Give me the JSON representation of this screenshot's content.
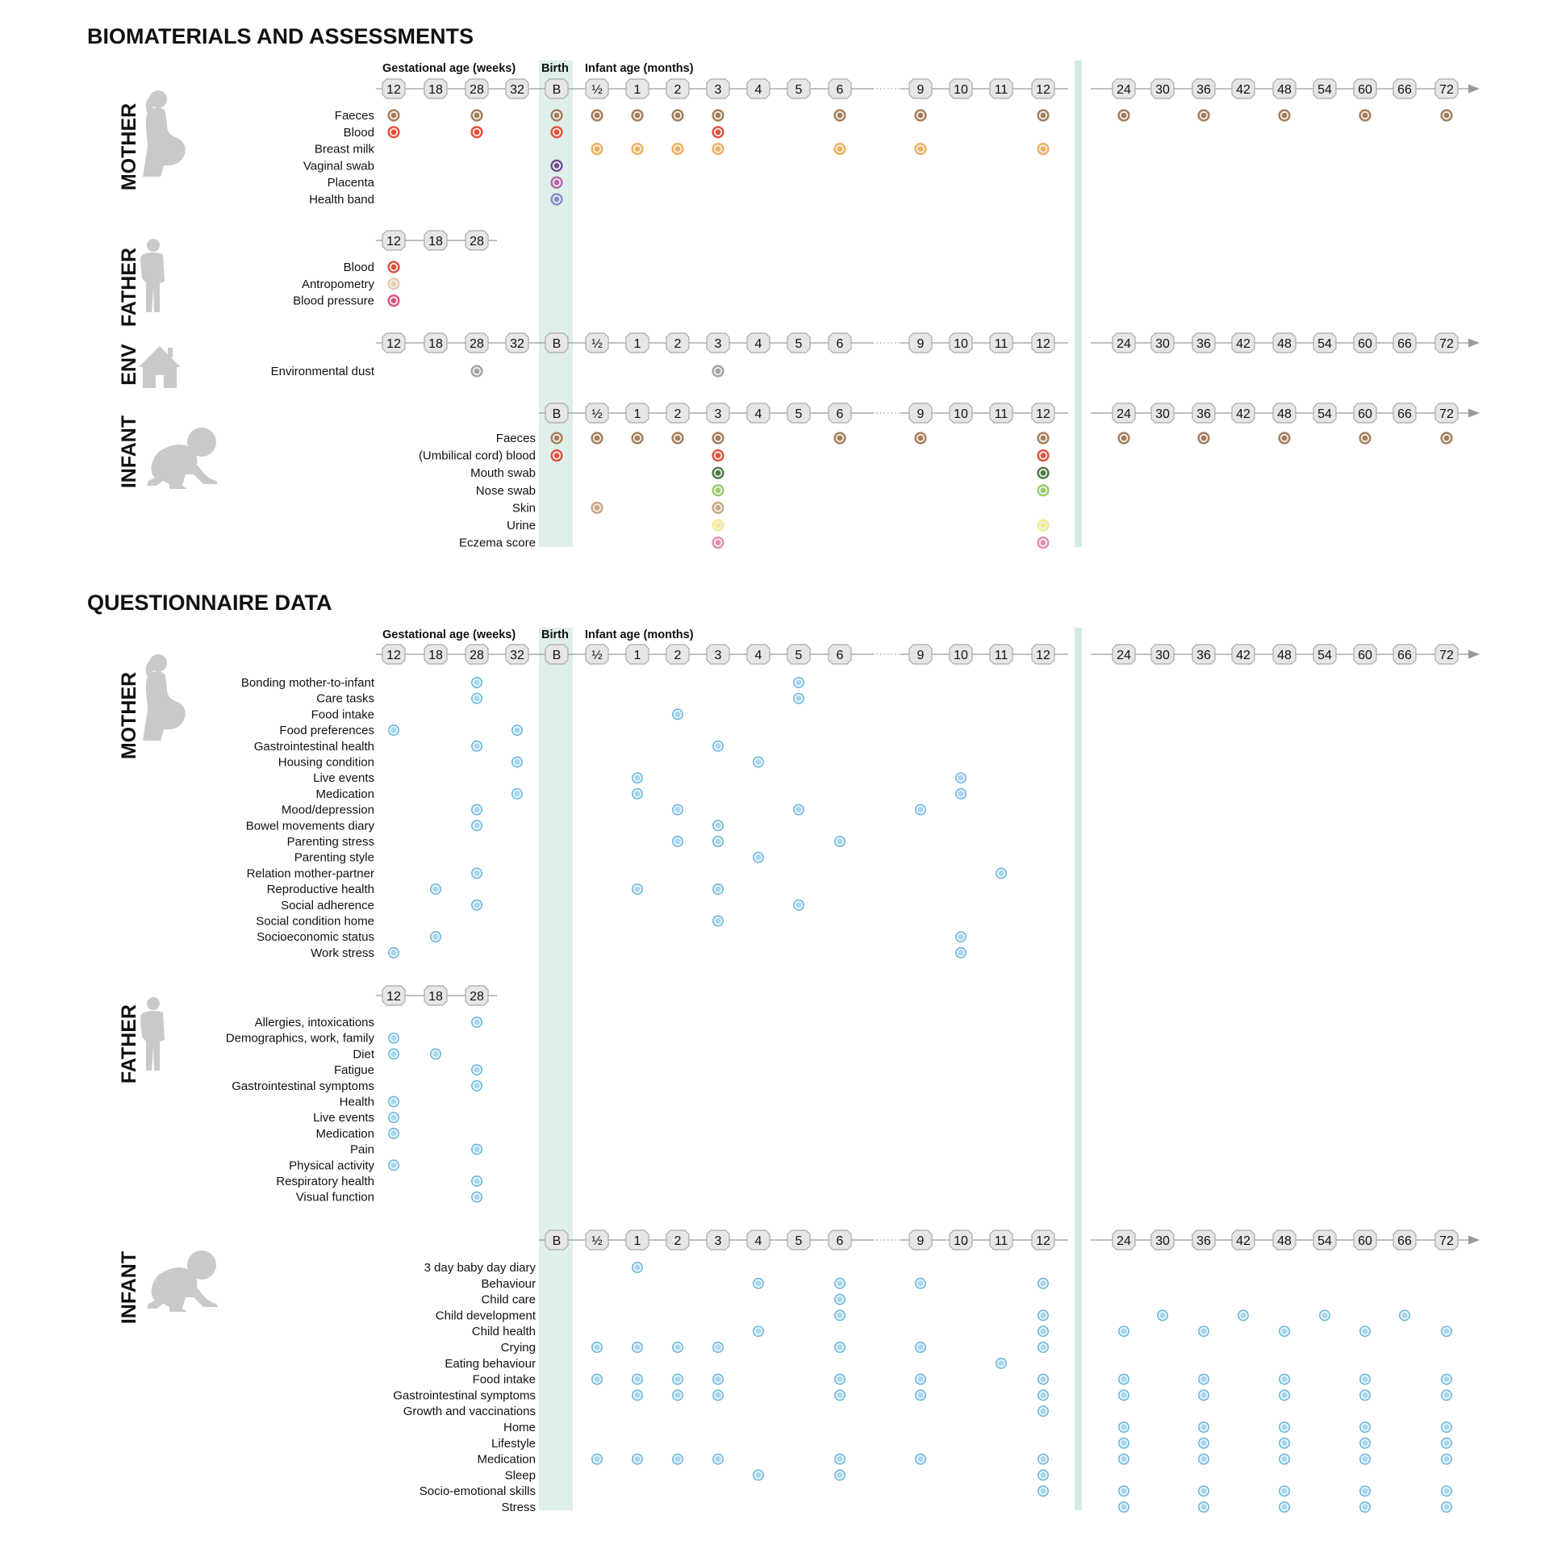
{
  "colors": {
    "birth_band": "#dfefe9",
    "separator": "#d3ebe3",
    "silhouette": "#c9c9c9",
    "tick_fill": "#e6e6e6",
    "tick_stroke": "#a9a9a9",
    "axis_line": "#9a9a9a",
    "questionnaire_dot": "#a9d7ee",
    "questionnaire_dot_stroke": "#6fb6da",
    "sample": {
      "faeces": "#a57e5a",
      "blood": "#e2513d",
      "breast_milk": "#efb15e",
      "vaginal_swab": "#6e4f97",
      "placenta": "#b46aa6",
      "health_band": "#7d8ec7",
      "antropometry": "#e1cdb2",
      "blood_pressure": "#d9577f",
      "environmental_dust": "#a3a3a3",
      "mouth_swab": "#4f7a45",
      "nose_swab": "#9ccc66",
      "skin": "#caa584",
      "urine": "#f4ec8d",
      "eczema_score": "#e58fb4"
    }
  },
  "axis": {
    "gestational_label": "Gestational age (weeks)",
    "birth_label": "Birth",
    "infant_label": "Infant age (months)",
    "gest_ticks": [
      "12",
      "18",
      "28",
      "32"
    ],
    "birth_tick": "B",
    "infant_ticks": [
      "½",
      "1",
      "2",
      "3",
      "4",
      "5",
      "6",
      "9",
      "10",
      "11",
      "12"
    ],
    "later_ticks": [
      "24",
      "30",
      "36",
      "42",
      "48",
      "54",
      "60",
      "66",
      "72"
    ]
  },
  "sections": [
    {
      "title": "BIOMATERIALS AND ASSESSMENTS",
      "dot_style": "sample",
      "groups": [
        {
          "id": "bio-mother",
          "label": "MOTHER",
          "icon": "pregnant-woman-icon",
          "axis": "full",
          "show_axis_header": true,
          "rows": [
            {
              "label": "Faeces",
              "color": "faeces",
              "points": [
                "12",
                "28",
                "B",
                "½",
                "1",
                "2",
                "3",
                "6",
                "9",
                "12",
                "24",
                "36",
                "48",
                "60",
                "72"
              ]
            },
            {
              "label": "Blood",
              "color": "blood",
              "points": [
                "12",
                "28",
                "B",
                "3"
              ]
            },
            {
              "label": "Breast milk",
              "color": "breast_milk",
              "points": [
                "½",
                "1",
                "2",
                "3",
                "6",
                "9",
                "12"
              ]
            },
            {
              "label": "Vaginal swab",
              "color": "vaginal_swab",
              "points": [
                "B"
              ]
            },
            {
              "label": "Placenta",
              "color": "placenta",
              "points": [
                "B"
              ]
            },
            {
              "label": "Health band",
              "color": "health_band",
              "points": [
                "B"
              ]
            }
          ]
        },
        {
          "id": "bio-father",
          "label": "FATHER",
          "icon": "man-standing-icon",
          "axis": "father",
          "rows": [
            {
              "label": "Blood",
              "color": "blood",
              "points": [
                "12"
              ]
            },
            {
              "label": "Antropometry",
              "color": "antropometry",
              "points": [
                "12"
              ]
            },
            {
              "label": "Blood pressure",
              "color": "blood_pressure",
              "points": [
                "12"
              ]
            }
          ]
        },
        {
          "id": "bio-env",
          "label": "ENV",
          "icon": "house-icon",
          "axis": "full",
          "rows": [
            {
              "label": "Environmental dust",
              "color": "environmental_dust",
              "points": [
                "28",
                "3"
              ]
            }
          ]
        },
        {
          "id": "bio-infant",
          "label": "INFANT",
          "icon": "crawling-baby-icon",
          "axis": "infant",
          "rows": [
            {
              "label": "Faeces",
              "color": "faeces",
              "points": [
                "B",
                "½",
                "1",
                "2",
                "3",
                "6",
                "9",
                "12",
                "24",
                "36",
                "48",
                "60",
                "72"
              ]
            },
            {
              "label": "(Umbilical cord) blood",
              "color": "blood",
              "points": [
                "B",
                "3",
                "12"
              ]
            },
            {
              "label": "Mouth swab",
              "color": "mouth_swab",
              "points": [
                "3",
                "12"
              ]
            },
            {
              "label": "Nose swab",
              "color": "nose_swab",
              "points": [
                "3",
                "12"
              ]
            },
            {
              "label": "Skin",
              "color": "skin",
              "points": [
                "½",
                "3"
              ]
            },
            {
              "label": "Urine",
              "color": "urine",
              "points": [
                "3",
                "12"
              ]
            },
            {
              "label": "Eczema score",
              "color": "eczema_score",
              "points": [
                "3",
                "12"
              ]
            }
          ]
        }
      ]
    },
    {
      "title": "QUESTIONNAIRE DATA",
      "dot_style": "questionnaire",
      "groups": [
        {
          "id": "q-mother",
          "label": "MOTHER",
          "icon": "pregnant-woman-icon",
          "axis": "full",
          "show_axis_header": true,
          "rows": [
            {
              "label": "Bonding mother-to-infant",
              "points": [
                "28",
                "5"
              ]
            },
            {
              "label": "Care tasks",
              "points": [
                "28",
                "5"
              ]
            },
            {
              "label": "Food intake",
              "points": [
                "2"
              ]
            },
            {
              "label": "Food preferences",
              "points": [
                "12",
                "32"
              ]
            },
            {
              "label": "Gastrointestinal health",
              "points": [
                "28",
                "3"
              ]
            },
            {
              "label": "Housing condition",
              "points": [
                "32",
                "4"
              ]
            },
            {
              "label": "Live events",
              "points": [
                "1",
                "10"
              ]
            },
            {
              "label": "Medication",
              "points": [
                "32",
                "1",
                "10"
              ]
            },
            {
              "label": "Mood/depression",
              "points": [
                "28",
                "2",
                "5",
                "9"
              ]
            },
            {
              "label": "Bowel movements diary",
              "points": [
                "28",
                "3"
              ]
            },
            {
              "label": "Parenting stress",
              "points": [
                "2",
                "3",
                "6"
              ]
            },
            {
              "label": "Parenting style",
              "points": [
                "4"
              ]
            },
            {
              "label": "Relation mother-partner",
              "points": [
                "28",
                "11"
              ]
            },
            {
              "label": "Reproductive health",
              "points": [
                "18",
                "1",
                "3"
              ]
            },
            {
              "label": "Social adherence",
              "points": [
                "28",
                "5"
              ]
            },
            {
              "label": "Social condition home",
              "points": [
                "3"
              ]
            },
            {
              "label": "Socioeconomic status",
              "points": [
                "18",
                "10"
              ]
            },
            {
              "label": "Work stress",
              "points": [
                "12",
                "10"
              ]
            }
          ]
        },
        {
          "id": "q-father",
          "label": "FATHER",
          "icon": "man-standing-icon",
          "axis": "father",
          "rows": [
            {
              "label": "Allergies, intoxications",
              "points": [
                "28"
              ]
            },
            {
              "label": "Demographics, work, family",
              "points": [
                "12"
              ]
            },
            {
              "label": "Diet",
              "points": [
                "12",
                "18"
              ]
            },
            {
              "label": "Fatigue",
              "points": [
                "28"
              ]
            },
            {
              "label": "Gastrointestinal symptoms",
              "points": [
                "28"
              ]
            },
            {
              "label": "Health",
              "points": [
                "12"
              ]
            },
            {
              "label": "Live events",
              "points": [
                "12"
              ]
            },
            {
              "label": "Medication",
              "points": [
                "12"
              ]
            },
            {
              "label": "Pain",
              "points": [
                "28"
              ]
            },
            {
              "label": "Physical activity",
              "points": [
                "12"
              ]
            },
            {
              "label": "Respiratory health",
              "points": [
                "28"
              ]
            },
            {
              "label": "Visual function",
              "points": [
                "28"
              ]
            }
          ]
        },
        {
          "id": "q-infant",
          "label": "INFANT",
          "icon": "crawling-baby-icon",
          "axis": "infant",
          "rows": [
            {
              "label": "3 day baby day diary",
              "points": [
                "1"
              ]
            },
            {
              "label": "Behaviour",
              "points": [
                "4",
                "6",
                "9",
                "12"
              ]
            },
            {
              "label": "Child care",
              "points": [
                "6"
              ]
            },
            {
              "label": "Child development",
              "points": [
                "6",
                "12",
                "30",
                "42",
                "54",
                "66"
              ]
            },
            {
              "label": "Child health",
              "points": [
                "4",
                "12",
                "24",
                "36",
                "48",
                "60",
                "72"
              ]
            },
            {
              "label": "Crying",
              "points": [
                "½",
                "1",
                "2",
                "3",
                "6",
                "9",
                "12"
              ]
            },
            {
              "label": "Eating behaviour",
              "points": [
                "11"
              ]
            },
            {
              "label": "Food intake",
              "points": [
                "½",
                "1",
                "2",
                "3",
                "6",
                "9",
                "12",
                "24",
                "36",
                "48",
                "60",
                "72"
              ]
            },
            {
              "label": "Gastrointestinal symptoms",
              "points": [
                "1",
                "2",
                "3",
                "6",
                "9",
                "12",
                "24",
                "36",
                "48",
                "60",
                "72"
              ]
            },
            {
              "label": "Growth and vaccinations",
              "points": [
                "12"
              ]
            },
            {
              "label": "Home",
              "points": [
                "24",
                "36",
                "48",
                "60",
                "72"
              ]
            },
            {
              "label": "Lifestyle",
              "points": [
                "24",
                "36",
                "48",
                "60",
                "72"
              ]
            },
            {
              "label": "Medication",
              "points": [
                "½",
                "1",
                "2",
                "3",
                "6",
                "9",
                "12",
                "24",
                "36",
                "48",
                "60",
                "72"
              ]
            },
            {
              "label": "Sleep",
              "points": [
                "4",
                "6",
                "12"
              ]
            },
            {
              "label": "Socio-emotional skills",
              "points": [
                "12",
                "24",
                "36",
                "48",
                "60",
                "72"
              ]
            },
            {
              "label": "Stress",
              "points": [
                "24",
                "36",
                "48",
                "60",
                "72"
              ]
            }
          ]
        }
      ]
    }
  ]
}
